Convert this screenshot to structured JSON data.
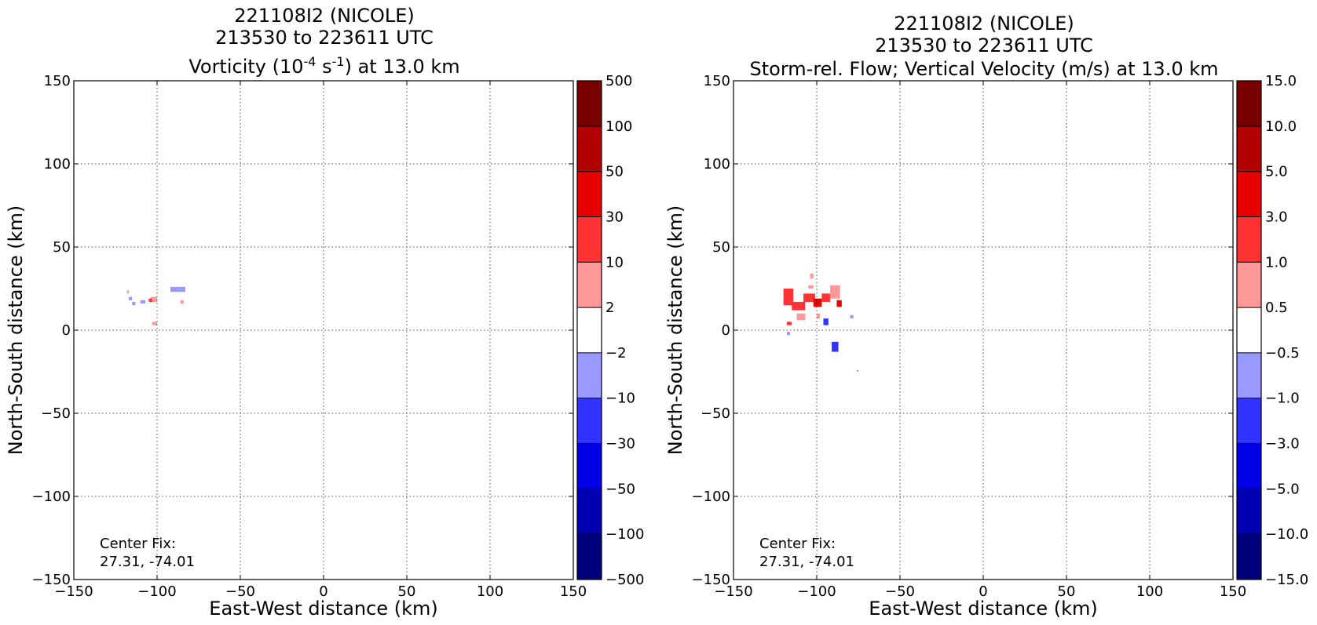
{
  "chart_data": [
    {
      "type": "heatmap",
      "title_lines": [
        "221108I2 (NICOLE)",
        "213530 to 223611 UTC"
      ],
      "title_var": {
        "base": "Vorticity (10",
        "sup1": "-4",
        "mid": " s",
        "sup2": "-1",
        "tail": ") at 13.0 km"
      },
      "xlabel": "East-West distance (km)",
      "ylabel": "North-South distance (km)",
      "xlim": [
        -150,
        150
      ],
      "ylim": [
        -150,
        150
      ],
      "xticks": [
        -150,
        -100,
        -50,
        0,
        50,
        100,
        150
      ],
      "yticks": [
        -150,
        -100,
        -50,
        0,
        50,
        100,
        150
      ],
      "xtick_labels": [
        "−150",
        "−100",
        "−50",
        "0",
        "50",
        "100",
        "150"
      ],
      "ytick_labels": [
        "−150",
        "−100",
        "−50",
        "0",
        "50",
        "100",
        "150"
      ],
      "grid": true,
      "annotation": [
        "Center Fix:",
        "27.31, -74.01"
      ],
      "colorbar": {
        "labels": [
          "500",
          "100",
          "50",
          "30",
          "10",
          "2",
          "−2",
          "−10",
          "−30",
          "−50",
          "−100",
          "−500"
        ],
        "colors": [
          "#7a0000",
          "#b20000",
          "#e60000",
          "#ff3333",
          "#ff9999",
          "#ffffff",
          "#9999ff",
          "#3333ff",
          "#0000e6",
          "#0000b2",
          "#00007a"
        ]
      },
      "cells": [
        {
          "x": -104,
          "y": 17,
          "w": 4,
          "h": 3,
          "color": "#ff9999"
        },
        {
          "x": -105,
          "y": 17,
          "w": 2,
          "h": 2,
          "color": "#ff3333"
        },
        {
          "x": -92,
          "y": 23,
          "w": 9,
          "h": 3,
          "color": "#9999ff"
        },
        {
          "x": -110,
          "y": 16,
          "w": 3,
          "h": 2,
          "color": "#9999ff"
        },
        {
          "x": -117,
          "y": 18,
          "w": 2,
          "h": 2,
          "color": "#9999ff"
        },
        {
          "x": -115,
          "y": 15,
          "w": 2,
          "h": 2,
          "color": "#9999ff"
        },
        {
          "x": -86,
          "y": 16,
          "w": 2,
          "h": 2,
          "color": "#ff9999"
        },
        {
          "x": -103,
          "y": 3,
          "w": 3,
          "h": 2,
          "color": "#ff9999"
        },
        {
          "x": -118,
          "y": 22,
          "w": 1,
          "h": 2,
          "color": "#ff9999"
        }
      ]
    },
    {
      "type": "heatmap",
      "title_lines": [
        "221108I2 (NICOLE)",
        "213530 to 223611 UTC"
      ],
      "title_var": {
        "text": "Storm-rel. Flow; Vertical Velocity (m/s) at 13.0 km"
      },
      "xlabel": "East-West distance (km)",
      "ylabel": "North-South distance (km)",
      "xlim": [
        -150,
        150
      ],
      "ylim": [
        -150,
        150
      ],
      "xticks": [
        -150,
        -100,
        -50,
        0,
        50,
        100,
        150
      ],
      "yticks": [
        -150,
        -100,
        -50,
        0,
        50,
        100,
        150
      ],
      "xtick_labels": [
        "−150",
        "−100",
        "−50",
        "0",
        "50",
        "100",
        "150"
      ],
      "ytick_labels": [
        "−150",
        "−100",
        "−50",
        "0",
        "50",
        "100",
        "150"
      ],
      "grid": true,
      "annotation": [
        "Center Fix:",
        "27.31, -74.01"
      ],
      "colorbar": {
        "labels": [
          "15.0",
          "10.0",
          "5.0",
          "3.0",
          "1.0",
          "0.5",
          "−0.5",
          "−1.0",
          "−3.0",
          "−5.0",
          "−10.0",
          "−15.0"
        ],
        "colors": [
          "#7a0000",
          "#b20000",
          "#e60000",
          "#ff3333",
          "#ff9999",
          "#ffffff",
          "#9999ff",
          "#3333ff",
          "#0000e6",
          "#0000b2",
          "#00007a"
        ]
      },
      "cells": [
        {
          "x": -120,
          "y": 15,
          "w": 6,
          "h": 10,
          "color": "#ff3333"
        },
        {
          "x": -115,
          "y": 12,
          "w": 8,
          "h": 5,
          "color": "#ff3333"
        },
        {
          "x": -108,
          "y": 17,
          "w": 7,
          "h": 5,
          "color": "#ff3333"
        },
        {
          "x": -102,
          "y": 14,
          "w": 5,
          "h": 5,
          "color": "#e60000"
        },
        {
          "x": -97,
          "y": 17,
          "w": 5,
          "h": 5,
          "color": "#ff3333"
        },
        {
          "x": -92,
          "y": 19,
          "w": 6,
          "h": 8,
          "color": "#ff9999"
        },
        {
          "x": -88,
          "y": 14,
          "w": 3,
          "h": 4,
          "color": "#e60000"
        },
        {
          "x": -112,
          "y": 6,
          "w": 5,
          "h": 4,
          "color": "#ff9999"
        },
        {
          "x": -118,
          "y": 3,
          "w": 3,
          "h": 2,
          "color": "#ff3333"
        },
        {
          "x": -105,
          "y": 25,
          "w": 3,
          "h": 2,
          "color": "#ff9999"
        },
        {
          "x": -104,
          "y": 31,
          "w": 2,
          "h": 3,
          "color": "#ff9999"
        },
        {
          "x": -96,
          "y": 3,
          "w": 3,
          "h": 4,
          "color": "#3333ff"
        },
        {
          "x": -91,
          "y": -13,
          "w": 4,
          "h": 6,
          "color": "#3333ff"
        },
        {
          "x": -118,
          "y": -3,
          "w": 2,
          "h": 2,
          "color": "#9999ff"
        },
        {
          "x": -80,
          "y": 7,
          "w": 2,
          "h": 2,
          "color": "#9999ff"
        },
        {
          "x": -76,
          "y": -25,
          "w": 1,
          "h": 1,
          "color": "#9999ff"
        },
        {
          "x": -100,
          "y": 7,
          "w": 2,
          "h": 3,
          "color": "#ff9999"
        }
      ]
    }
  ]
}
